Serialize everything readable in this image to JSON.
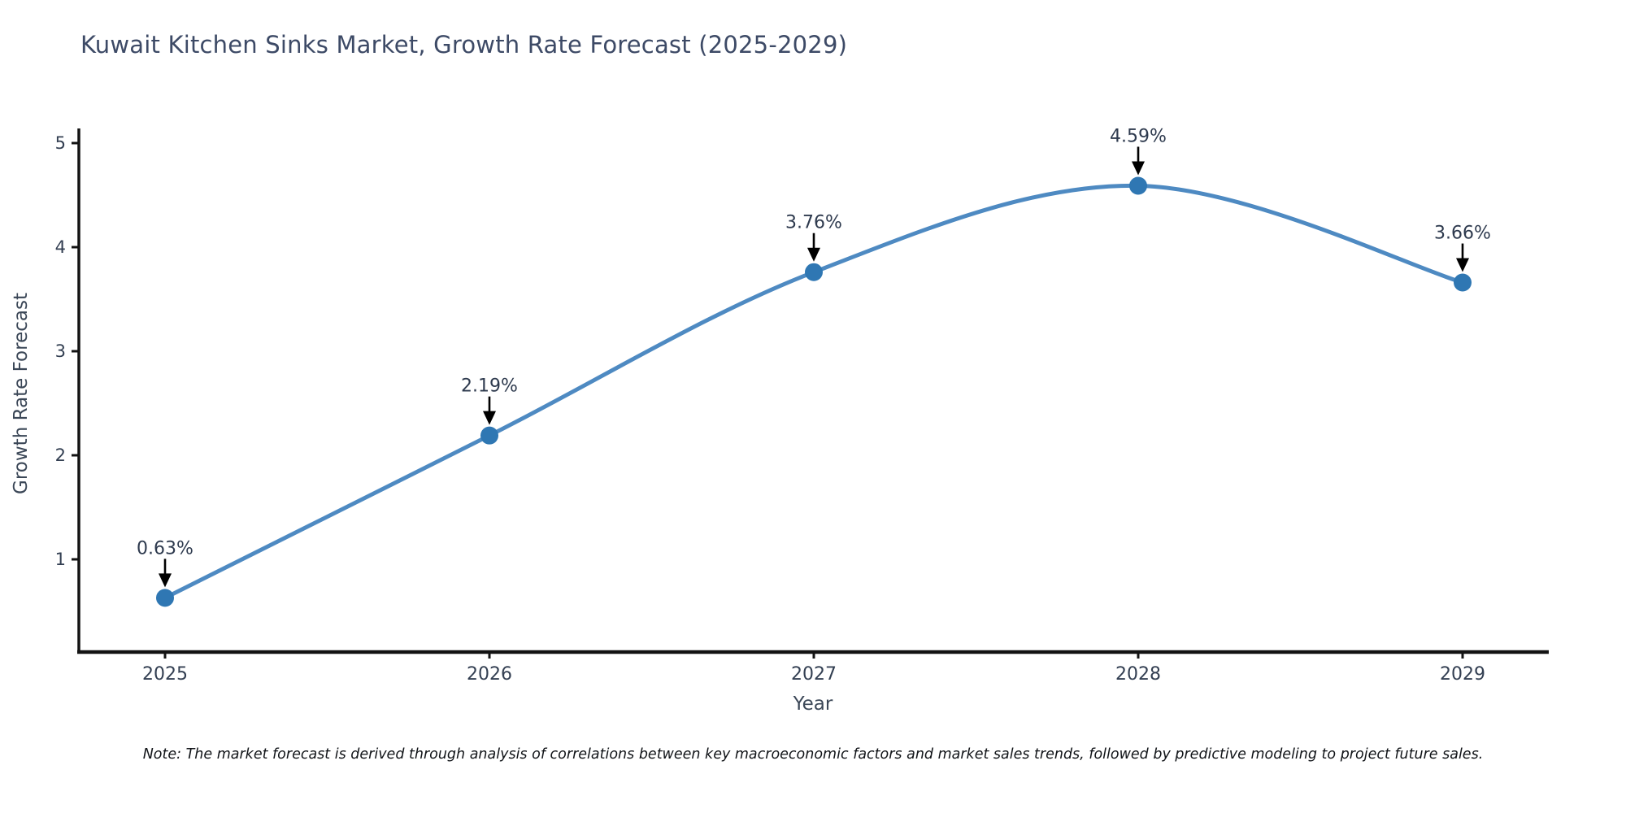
{
  "page": {
    "title": "Kuwait Kitchen Sinks Market, Growth Rate Forecast (2025-2029)",
    "note": "Note: The market forecast is derived through analysis of correlations between key macroeconomic factors and market sales trends, followed by predictive modeling to project future sales."
  },
  "chart_data": {
    "type": "line",
    "title": "Kuwait Kitchen Sinks Market, Growth Rate Forecast (2025-2029)",
    "xlabel": "Year",
    "ylabel": "Growth Rate Forecast",
    "categories": [
      "2025",
      "2026",
      "2027",
      "2028",
      "2029"
    ],
    "values": [
      0.63,
      2.19,
      3.76,
      4.59,
      3.66
    ],
    "point_labels": [
      "0.63%",
      "2.19%",
      "3.76%",
      "4.59%",
      "3.66%"
    ],
    "yticks": [
      "1",
      "2",
      "3",
      "4",
      "5"
    ],
    "ylim": [
      0.1,
      5.15
    ],
    "grid": false,
    "legend_position": "none",
    "annotation_style": "label-above-with-down-arrow",
    "colors": {
      "line": "#4e8ac2",
      "marker": "#2f77b3",
      "axis": "#131313",
      "tick_label": "#333f52",
      "annotation_text": "#2e3a4e",
      "arrow": "#000000",
      "title": "#3d4a66"
    }
  }
}
